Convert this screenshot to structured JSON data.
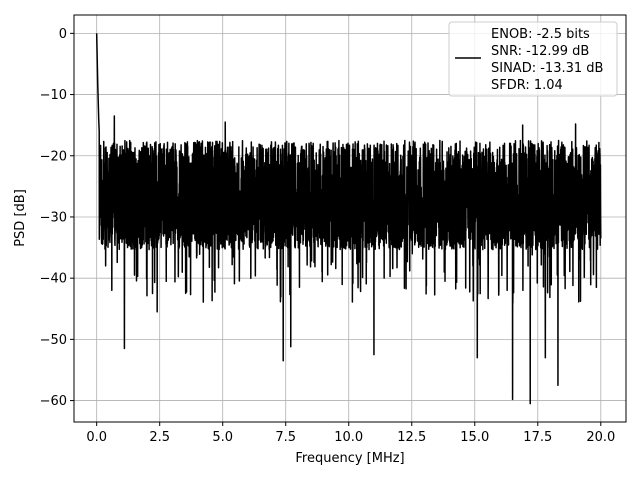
{
  "chart_data": {
    "type": "line",
    "title": "",
    "xlabel": "Frequency [MHz]",
    "ylabel": "PSD [dB]",
    "xlim": [
      -0.9,
      21.0
    ],
    "ylim": [
      -63.5,
      3.0
    ],
    "x_ticks": [
      0.0,
      2.5,
      5.0,
      7.5,
      10.0,
      12.5,
      15.0,
      17.5,
      20.0
    ],
    "x_tick_labels": [
      "0.0",
      "2.5",
      "5.0",
      "7.5",
      "10.0",
      "12.5",
      "15.0",
      "17.5",
      "20.0"
    ],
    "y_ticks": [
      0,
      -10,
      -20,
      -30,
      -40,
      -50,
      -60
    ],
    "y_tick_labels": [
      "0",
      "−10",
      "−20",
      "−30",
      "−40",
      "−50",
      "−60"
    ],
    "grid": true,
    "legend_position": "top-right",
    "line_color": "#000000",
    "series": [
      {
        "legend_lines": [
          "ENOB: -2.5 bits",
          "SNR: -12.99 dB",
          "SINAD: -13.31 dB",
          "SFDR: 1.04"
        ],
        "noise_floor_db": -28,
        "floor_band_db": [
          -35,
          -18
        ],
        "peak_db": 0,
        "notable_dips": [
          {
            "x": 0.2,
            "y": -30.3
          },
          {
            "x": 0.6,
            "y": -42.0
          },
          {
            "x": 1.1,
            "y": -51.5
          },
          {
            "x": 2.4,
            "y": -45.5
          },
          {
            "x": 7.4,
            "y": -53.5
          },
          {
            "x": 7.7,
            "y": -51.2
          },
          {
            "x": 11.0,
            "y": -52.5
          },
          {
            "x": 15.1,
            "y": -53.0
          },
          {
            "x": 16.5,
            "y": -59.8
          },
          {
            "x": 17.2,
            "y": -60.5
          },
          {
            "x": 17.8,
            "y": -53.0
          },
          {
            "x": 18.3,
            "y": -57.5
          }
        ],
        "notable_peaks": [
          {
            "x": 0.0,
            "y": 0.0
          },
          {
            "x": 0.05,
            "y": -6.0
          },
          {
            "x": 0.1,
            "y": -10.0
          },
          {
            "x": 0.7,
            "y": -13.5
          },
          {
            "x": 5.1,
            "y": -14.5
          },
          {
            "x": 16.9,
            "y": -15.0
          },
          {
            "x": 19.0,
            "y": -14.8
          }
        ],
        "x_end": 20.0,
        "end_value": -33.5
      }
    ]
  }
}
